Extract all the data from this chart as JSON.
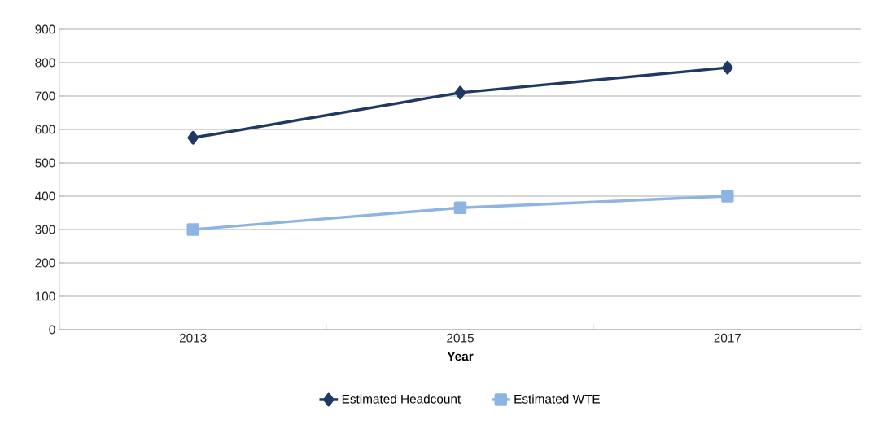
{
  "chart_data": {
    "type": "line",
    "xlabel": "Year",
    "categories": [
      "2013",
      "2015",
      "2017"
    ],
    "series": [
      {
        "name": "Estimated Headcount",
        "color": "#1f3864",
        "marker": "diamond",
        "values": [
          575,
          710,
          785
        ]
      },
      {
        "name": "Estimated WTE",
        "color": "#8eb4e3",
        "marker": "square",
        "values": [
          300,
          365,
          400
        ]
      }
    ],
    "ylim": [
      0,
      900
    ],
    "yticks": [
      0,
      100,
      200,
      300,
      400,
      500,
      600,
      700,
      800,
      900
    ],
    "grid": "y",
    "legend": "bottom"
  }
}
